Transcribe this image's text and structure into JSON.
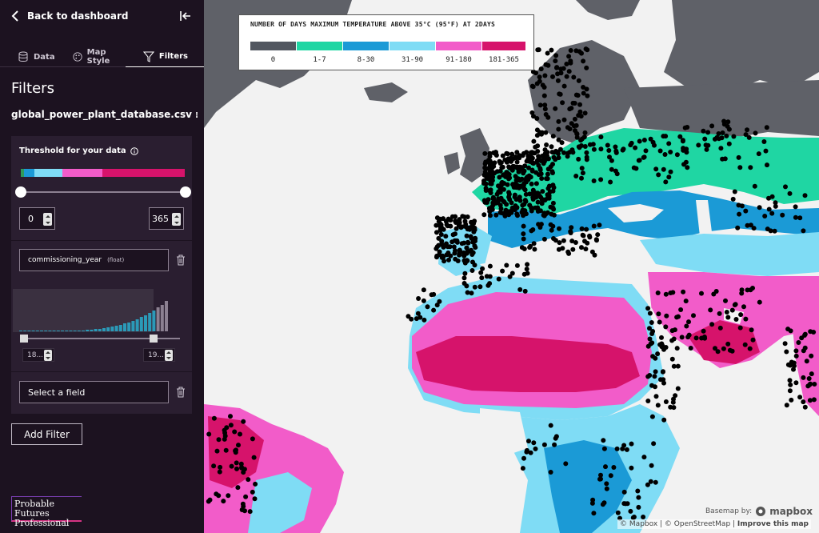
{
  "sidebar": {
    "back_label": "Back to dashboard",
    "tabs": [
      {
        "label": "Data",
        "icon": "database-icon"
      },
      {
        "label": "Map Style",
        "icon": "palette-icon"
      },
      {
        "label": "Filters",
        "icon": "filter-icon",
        "active": true
      }
    ],
    "title": "Filters",
    "dataset_name": "global_power_plant_database.csv",
    "threshold": {
      "label": "Threshold for your data",
      "min_value": "0",
      "max_value": "365",
      "colors": [
        "#2f9c5a",
        "#1b9ad6",
        "#7fdcf5",
        "#f25cc9",
        "#d6136b"
      ]
    },
    "filter": {
      "field_name": "commissioning_year",
      "field_type": "(float)",
      "range_min": "18...",
      "range_max": "19..."
    },
    "select_field_placeholder": "Select a field",
    "add_filter_label": "Add Filter",
    "logo_line1": "Probable Futures",
    "logo_line2": "Professional"
  },
  "legend": {
    "title": "NUMBER OF DAYS MAXIMUM TEMPERATURE ABOVE 35°C (95°F) AT 2DAYS",
    "bins": [
      {
        "label": "0",
        "color": "#525760"
      },
      {
        "label": "1-7",
        "color": "#1fd6a3"
      },
      {
        "label": "8-30",
        "color": "#1b9ad6"
      },
      {
        "label": "31-90",
        "color": "#7fdcf5"
      },
      {
        "label": "91-180",
        "color": "#f25cc9"
      },
      {
        "label": "181-365",
        "color": "#d6136b"
      }
    ]
  },
  "map_controls": {
    "zoom_in": "+",
    "zoom_out": "−"
  },
  "attribution": {
    "basemap_label": "Basemap by:",
    "mapbox_label": "mapbox",
    "text": "© Mapbox | © OpenStreetMap | ",
    "improve_link": "Improve this map"
  },
  "colors": {
    "sidebar_bg": "#1c1220",
    "panel_bg": "#2a1e30",
    "land_gray": "#5f6168",
    "ocean": "#f2f2f2",
    "plant_dot": "#000000"
  }
}
